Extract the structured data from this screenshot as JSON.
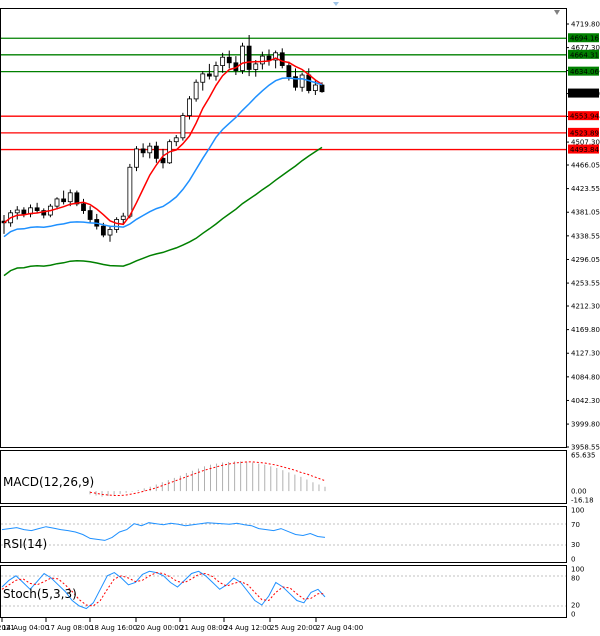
{
  "chart_data": {
    "type": "candlestick",
    "price_axis_ticks": [
      "4719.80",
      "4677.30",
      "4636.05",
      "4594.60",
      "4553.35",
      "4507.30",
      "4466.05",
      "4423.55",
      "4381.05",
      "4338.55",
      "4296.05",
      "4253.55",
      "4212.30",
      "4169.80",
      "4127.30",
      "4084.80",
      "4042.30",
      "3999.80",
      "3958.55"
    ],
    "ylim": [
      3958.55,
      4719.8
    ],
    "price_labels": [
      {
        "value": 4694.16,
        "text": "4694.16",
        "color": "#008000"
      },
      {
        "value": 4664.31,
        "text": "4664.31",
        "color": "#008000"
      },
      {
        "value": 4634.06,
        "text": "4634.06",
        "color": "#008000"
      },
      {
        "value": 4594.6,
        "text": "4594.60",
        "color": "#000000"
      },
      {
        "value": 4553.94,
        "text": "4553.94",
        "color": "#ff0000"
      },
      {
        "value": 4523.89,
        "text": "4523.89",
        "color": "#ff0000"
      },
      {
        "value": 4493.84,
        "text": "4493.84",
        "color": "#ff0000"
      }
    ],
    "horizontal_lines": [
      {
        "value": 4694.16,
        "color": "#008000"
      },
      {
        "value": 4664.31,
        "color": "#008000"
      },
      {
        "value": 4634.06,
        "color": "#008000"
      },
      {
        "value": 4553.94,
        "color": "#ff0000"
      },
      {
        "value": 4523.89,
        "color": "#ff0000"
      },
      {
        "value": 4493.84,
        "color": "#ff0000"
      }
    ],
    "time_labels": [
      "14 Aug 2021",
      "14 Aug 04:00",
      "17 Aug 08:00",
      "18 Aug 16:00",
      "20 Aug 00:00",
      "21 Aug 08:00",
      "24 Aug 12:00",
      "25 Aug 20:00",
      "27 Aug 04:00"
    ],
    "candles": [
      {
        "o": 4365,
        "h": 4376,
        "l": 4342,
        "c": 4362
      },
      {
        "o": 4362,
        "h": 4385,
        "l": 4355,
        "c": 4380
      },
      {
        "o": 4380,
        "h": 4392,
        "l": 4368,
        "c": 4385
      },
      {
        "o": 4385,
        "h": 4390,
        "l": 4372,
        "c": 4378
      },
      {
        "o": 4378,
        "h": 4395,
        "l": 4372,
        "c": 4389
      },
      {
        "o": 4389,
        "h": 4398,
        "l": 4380,
        "c": 4384
      },
      {
        "o": 4384,
        "h": 4388,
        "l": 4370,
        "c": 4376
      },
      {
        "o": 4376,
        "h": 4396,
        "l": 4372,
        "c": 4392
      },
      {
        "o": 4392,
        "h": 4408,
        "l": 4386,
        "c": 4405
      },
      {
        "o": 4405,
        "h": 4420,
        "l": 4395,
        "c": 4400
      },
      {
        "o": 4400,
        "h": 4422,
        "l": 4392,
        "c": 4416
      },
      {
        "o": 4416,
        "h": 4420,
        "l": 4392,
        "c": 4396
      },
      {
        "o": 4396,
        "h": 4405,
        "l": 4378,
        "c": 4384
      },
      {
        "o": 4384,
        "h": 4392,
        "l": 4362,
        "c": 4368
      },
      {
        "o": 4368,
        "h": 4378,
        "l": 4350,
        "c": 4356
      },
      {
        "o": 4356,
        "h": 4362,
        "l": 4336,
        "c": 4340
      },
      {
        "o": 4340,
        "h": 4356,
        "l": 4328,
        "c": 4350
      },
      {
        "o": 4350,
        "h": 4372,
        "l": 4344,
        "c": 4368
      },
      {
        "o": 4368,
        "h": 4380,
        "l": 4358,
        "c": 4374
      },
      {
        "o": 4374,
        "h": 4468,
        "l": 4370,
        "c": 4462
      },
      {
        "o": 4462,
        "h": 4500,
        "l": 4455,
        "c": 4495
      },
      {
        "o": 4495,
        "h": 4505,
        "l": 4480,
        "c": 4488
      },
      {
        "o": 4488,
        "h": 4506,
        "l": 4478,
        "c": 4500
      },
      {
        "o": 4500,
        "h": 4508,
        "l": 4470,
        "c": 4478
      },
      {
        "o": 4478,
        "h": 4495,
        "l": 4460,
        "c": 4470
      },
      {
        "o": 4470,
        "h": 4512,
        "l": 4468,
        "c": 4508
      },
      {
        "o": 4508,
        "h": 4520,
        "l": 4500,
        "c": 4515
      },
      {
        "o": 4515,
        "h": 4560,
        "l": 4510,
        "c": 4555
      },
      {
        "o": 4555,
        "h": 4590,
        "l": 4548,
        "c": 4585
      },
      {
        "o": 4585,
        "h": 4620,
        "l": 4580,
        "c": 4615
      },
      {
        "o": 4615,
        "h": 4635,
        "l": 4600,
        "c": 4630
      },
      {
        "o": 4630,
        "h": 4648,
        "l": 4620,
        "c": 4626
      },
      {
        "o": 4626,
        "h": 4652,
        "l": 4618,
        "c": 4645
      },
      {
        "o": 4645,
        "h": 4668,
        "l": 4632,
        "c": 4660
      },
      {
        "o": 4660,
        "h": 4672,
        "l": 4640,
        "c": 4650
      },
      {
        "o": 4650,
        "h": 4662,
        "l": 4628,
        "c": 4636
      },
      {
        "o": 4636,
        "h": 4686,
        "l": 4630,
        "c": 4680
      },
      {
        "o": 4680,
        "h": 4700,
        "l": 4626,
        "c": 4638
      },
      {
        "o": 4638,
        "h": 4655,
        "l": 4625,
        "c": 4648
      },
      {
        "o": 4648,
        "h": 4670,
        "l": 4638,
        "c": 4662
      },
      {
        "o": 4662,
        "h": 4674,
        "l": 4645,
        "c": 4655
      },
      {
        "o": 4655,
        "h": 4672,
        "l": 4640,
        "c": 4668
      },
      {
        "o": 4668,
        "h": 4676,
        "l": 4640,
        "c": 4645
      },
      {
        "o": 4645,
        "h": 4652,
        "l": 4618,
        "c": 4625
      },
      {
        "o": 4625,
        "h": 4640,
        "l": 4600,
        "c": 4606
      },
      {
        "o": 4606,
        "h": 4632,
        "l": 4598,
        "c": 4628
      },
      {
        "o": 4628,
        "h": 4640,
        "l": 4595,
        "c": 4600
      },
      {
        "o": 4600,
        "h": 4618,
        "l": 4592,
        "c": 4610
      },
      {
        "o": 4610,
        "h": 4615,
        "l": 4596,
        "c": 4598
      }
    ],
    "ma_red_color": "#ff0000",
    "ma_blue_color": "#1e90ff",
    "ma_green_color": "#008000",
    "indicators": {
      "macd": {
        "label": "MACD(12,26,9)",
        "ticks": [
          "65.635",
          "0.00",
          "-16.18"
        ],
        "ylim": [
          -16.18,
          65.635
        ],
        "histogram": [
          -6,
          -8,
          -10,
          -9,
          -7,
          -5,
          -3,
          -1,
          2,
          5,
          8,
          12,
          16,
          20,
          24,
          28,
          33,
          37,
          41,
          45,
          48,
          50,
          52,
          53,
          54,
          54,
          53,
          52,
          50,
          48,
          45,
          42,
          38,
          34,
          30,
          26,
          21,
          16,
          12,
          8
        ],
        "signal": [
          -2,
          -4,
          -6,
          -7,
          -8,
          -8,
          -7,
          -5,
          -3,
          0,
          3,
          6,
          10,
          14,
          18,
          22,
          26,
          30,
          34,
          38,
          41,
          44,
          47,
          49,
          51,
          52,
          53,
          53,
          52,
          51,
          49,
          47,
          44,
          41,
          38,
          34,
          31,
          27,
          23,
          19
        ]
      },
      "rsi": {
        "label": "RSI(14)",
        "ticks": [
          "100",
          "70",
          "30",
          "0"
        ],
        "ylim": [
          0,
          100
        ],
        "values": [
          60,
          62,
          64,
          60,
          58,
          62,
          66,
          63,
          60,
          58,
          55,
          50,
          42,
          40,
          38,
          44,
          55,
          60,
          72,
          68,
          74,
          72,
          70,
          73,
          71,
          68,
          70,
          72,
          74,
          73,
          72,
          71,
          73,
          70,
          68,
          62,
          60,
          58,
          62,
          56,
          50,
          48,
          52,
          46,
          44
        ]
      },
      "stoch": {
        "label": "Stoch(5,3,3)",
        "ticks": [
          "100",
          "80",
          "20",
          "0"
        ],
        "ylim": [
          0,
          100
        ],
        "k": [
          60,
          75,
          85,
          70,
          55,
          72,
          90,
          80,
          65,
          50,
          30,
          18,
          12,
          25,
          55,
          85,
          92,
          80,
          65,
          70,
          88,
          95,
          92,
          85,
          70,
          60,
          75,
          90,
          95,
          85,
          70,
          55,
          65,
          80,
          70,
          50,
          30,
          20,
          40,
          70,
          60,
          45,
          30,
          25,
          48,
          55,
          38
        ],
        "d": [
          55,
          65,
          75,
          78,
          68,
          65,
          72,
          80,
          78,
          65,
          50,
          32,
          20,
          18,
          30,
          55,
          78,
          85,
          80,
          72,
          75,
          85,
          92,
          90,
          82,
          72,
          70,
          78,
          88,
          90,
          83,
          70,
          62,
          68,
          72,
          65,
          48,
          32,
          30,
          48,
          60,
          58,
          45,
          33,
          35,
          45,
          45
        ]
      }
    }
  }
}
